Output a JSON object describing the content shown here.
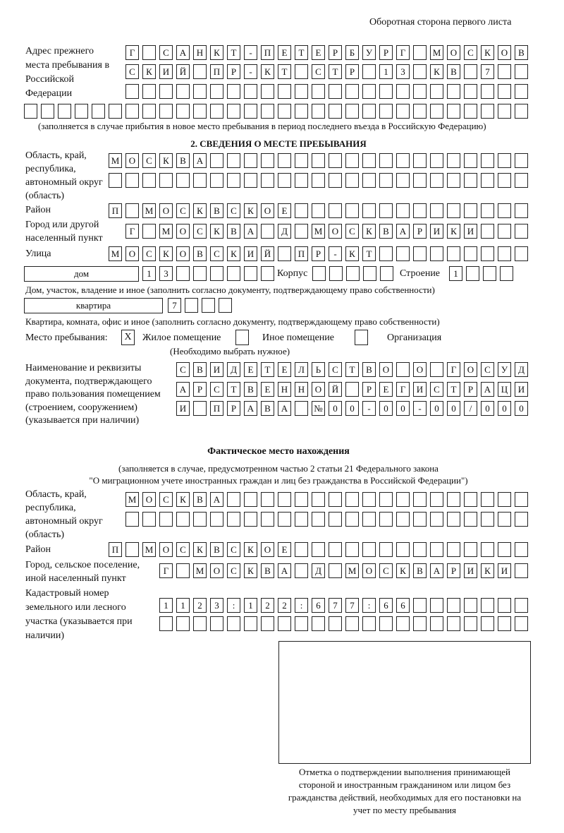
{
  "header": {
    "side_note": "Оборотная сторона первого листа"
  },
  "previous_address": {
    "label": "Адрес прежнего места пребывания в Российской Федерации",
    "rows": [
      "Г САНКТ-ПЕТЕРБУРГ МОСКОВ",
      "СКИЙ ПР-КТ СТР 13 КВ 7",
      "",
      ""
    ],
    "note": "(заполняется в случае прибытия в новое место пребывания в период последнего въезда в Российскую Федерацию)"
  },
  "section2": {
    "title": "2. СВЕДЕНИЯ О МЕСТЕ ПРЕБЫВАНИЯ",
    "region_label": "Область, край, республика, автономный округ (область)",
    "region_rows": [
      "МОСКВА",
      ""
    ],
    "district_label": "Район",
    "district": "П МОСКВСКОЕ",
    "city_label": "Город или другой населенный пункт",
    "city": "Г МОСКВА Д МОСКВАРИКИ",
    "street_label": "Улица",
    "street": "МОСКОВСКИЙ ПР-КТ",
    "house_type": "дом",
    "house_number": "13",
    "korpus_label": "Корпус",
    "korpus": "",
    "building_label": "Строение",
    "building": "1",
    "house_note": "Дом, участок, владение и иное (заполнить согласно документу, подтверждающему право собственности)",
    "apartment_type": "квартира",
    "apartment_number": "7",
    "apartment_note": "Квартира, комната, офис и иное (заполнить согласно документу, подтверждающему право собственности)",
    "place_label": "Место пребывания:",
    "place_options": [
      {
        "label": "Жилое помещение",
        "mark": "X"
      },
      {
        "label": "Иное помещение",
        "mark": ""
      },
      {
        "label": "Организация",
        "mark": ""
      }
    ],
    "place_hint": "(Необходимо выбрать нужное)",
    "document_label": "Наименование и реквизиты документа, подтверждающего право пользования помещением (строением, сооружением) (указывается при наличии)",
    "document_rows": [
      "СВИДЕТЕЛЬСТВО О ГОСУД",
      "АРСТВЕННОЙ РЕГИСТРАЦИ",
      "И ПРАВА №00-00-00/000"
    ]
  },
  "actual": {
    "title": "Фактическое место нахождения",
    "subtitle_1": "(заполняется в случае, предусмотренном частью 2 статьи 21 Федерального закона",
    "subtitle_2": "\"О миграционном учете иностранных граждан и лиц без гражданства в Российской Федерации\")",
    "region_label": "Область, край, республика, автономный округ (область)",
    "region_rows": [
      "МОСКВА",
      ""
    ],
    "district_label": "Район",
    "district": "П МОСКВСКОЕ",
    "city_label": "Город, сельское поселение, иной населенный пункт",
    "city": "Г МОСКВА Д МОСКВАРИКИ",
    "cadastral_label": "Кадастровый номер земельного или лесного участка (указывается при наличии)",
    "cadastral_rows": [
      "1123:122:677:66",
      ""
    ]
  },
  "confirmation": {
    "caption": "Отметка о подтверждении выполнения принимающей стороной и иностранным гражданином или лицом без гражданства действий, необходимых для его постановки на учет по месту пребывания"
  }
}
